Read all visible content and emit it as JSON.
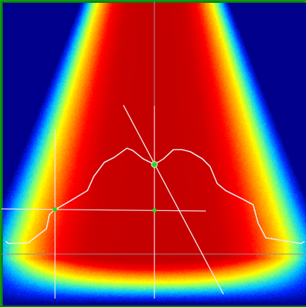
{
  "view": {
    "name": "intensity-heatmap-view",
    "colors": {
      "frame": "#0a7a0a",
      "frame_border": "#129a12",
      "profile_line": "#f2eeee",
      "crosshair_line": "#f4e8e8",
      "reference_line": "#9a8c8c",
      "handle_fill": "#22dd22",
      "colormap": [
        "#00008c",
        "#0040ff",
        "#00c8ff",
        "#80ff80",
        "#ffff00",
        "#ff8c00",
        "#ff0000",
        "#c80000"
      ]
    }
  }
}
